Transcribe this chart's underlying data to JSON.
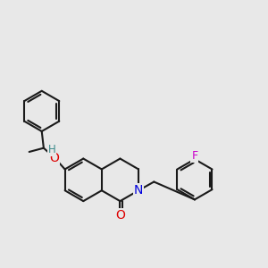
{
  "background_color": "#e8e8e8",
  "bond_color": "#1a1a1a",
  "bond_width": 1.5,
  "atom_colors": {
    "O": "#dd0000",
    "N": "#0000dd",
    "F": "#cc00cc",
    "H": "#3a8a8a"
  },
  "font_size": 9.0,
  "figsize": [
    3.0,
    3.0
  ],
  "dpi": 100,
  "ring_r": 0.44,
  "xlim": [
    0.3,
    5.8
  ],
  "ylim": [
    0.5,
    5.8
  ]
}
